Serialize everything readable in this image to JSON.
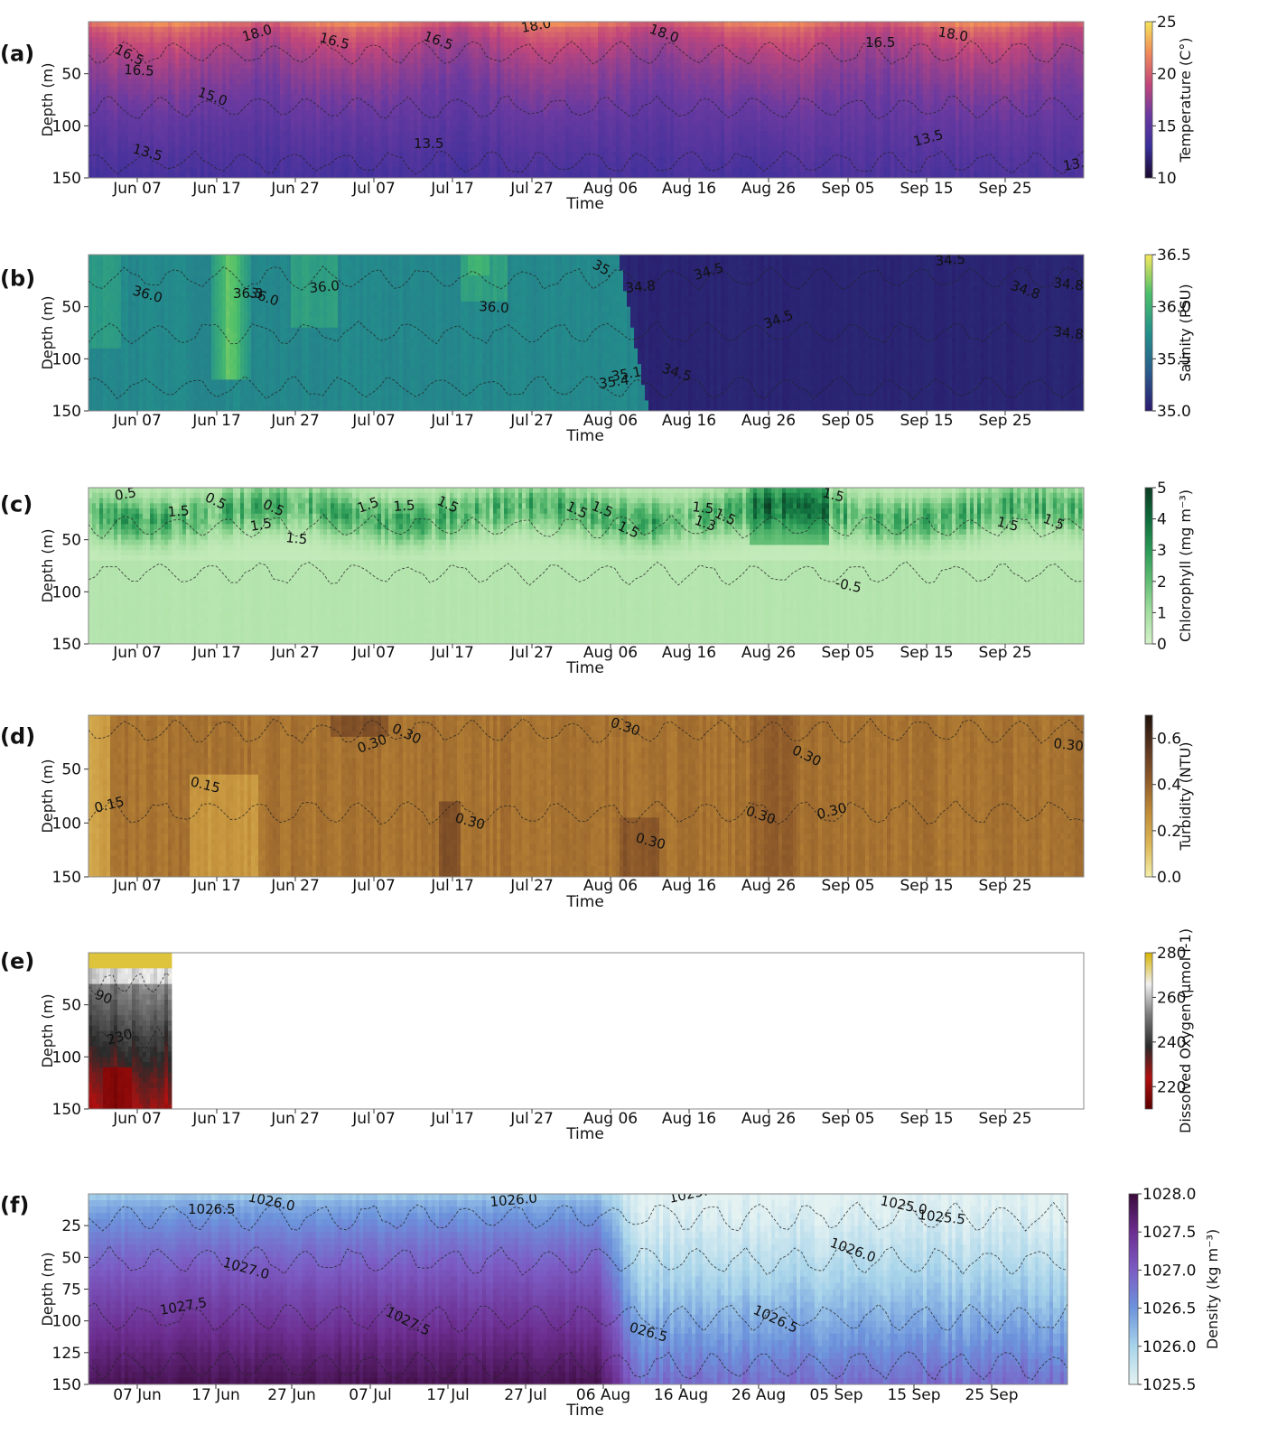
{
  "chart_data": [
    {
      "type": "heatmap",
      "panel_label": "(a)",
      "xlabel": "Time",
      "ylabel": "Depth (m)",
      "x_ticks": [
        "Jun 07",
        "Jun 17",
        "Jun 27",
        "Jul 07",
        "Jul 17",
        "Jul 27",
        "Aug 06",
        "Aug 16",
        "Aug 26",
        "Sep 05",
        "Sep 15",
        "Sep 25"
      ],
      "y_ticks": [
        50,
        100,
        150
      ],
      "ylim": [
        0,
        150
      ],
      "colorbar": {
        "label": "Temperature (C°)",
        "ticks": [
          10,
          15,
          20,
          25
        ],
        "range": [
          10,
          25
        ],
        "colors": [
          "#1a0a2e",
          "#3a2f9a",
          "#6a3aa0",
          "#c2477a",
          "#f08a5a",
          "#f6e55a"
        ]
      },
      "contours": [
        {
          "label": "16.5",
          "x": 28,
          "y": 34
        },
        {
          "label": "16.5",
          "x": 39,
          "y": 58
        },
        {
          "label": "18.0",
          "x": 172,
          "y": 22
        },
        {
          "label": "16.5",
          "x": 255,
          "y": 22
        },
        {
          "label": "16.5",
          "x": 370,
          "y": 20
        },
        {
          "label": "18.0",
          "x": 480,
          "y": 12
        },
        {
          "label": "18.0",
          "x": 620,
          "y": 12
        },
        {
          "label": "16.5",
          "x": 860,
          "y": 28
        },
        {
          "label": "18.0",
          "x": 940,
          "y": 16
        },
        {
          "label": "15.0",
          "x": 120,
          "y": 82
        },
        {
          "label": "13.5",
          "x": 48,
          "y": 145
        },
        {
          "label": "13.5",
          "x": 360,
          "y": 140
        },
        {
          "label": "13.5",
          "x": 915,
          "y": 138
        },
        {
          "label": "13.5",
          "x": 1080,
          "y": 165
        }
      ]
    },
    {
      "type": "heatmap",
      "panel_label": "(b)",
      "xlabel": "Time",
      "ylabel": "Depth (m)",
      "x_ticks": [
        "Jun 07",
        "Jun 17",
        "Jun 27",
        "Jul 07",
        "Jul 17",
        "Jul 27",
        "Aug 06",
        "Aug 16",
        "Aug 26",
        "Sep 05",
        "Sep 15",
        "Sep 25"
      ],
      "y_ticks": [
        50,
        100,
        150
      ],
      "ylim": [
        0,
        150
      ],
      "colorbar": {
        "label": "Salinity (PSU)",
        "ticks": [
          "35.0",
          "35.5",
          "36.0",
          "36.5"
        ],
        "range": [
          35.0,
          36.5
        ],
        "colors": [
          "#2a1a6e",
          "#2b5c8c",
          "#23908b",
          "#4cbf6a",
          "#f5e85c"
        ]
      },
      "contours": [
        {
          "label": "36.0",
          "x": 48,
          "y": 44
        },
        {
          "label": "36.3",
          "x": 160,
          "y": 48
        },
        {
          "label": "36.0",
          "x": 177,
          "y": 46
        },
        {
          "label": "36.0",
          "x": 245,
          "y": 42
        },
        {
          "label": "36.0",
          "x": 432,
          "y": 62
        },
        {
          "label": "35.",
          "x": 557,
          "y": 14
        },
        {
          "label": "34.8",
          "x": 595,
          "y": 42
        },
        {
          "label": "34.5",
          "x": 672,
          "y": 28
        },
        {
          "label": "34.5",
          "x": 938,
          "y": 12
        },
        {
          "label": "34.8",
          "x": 1020,
          "y": 38
        },
        {
          "label": "34.8",
          "x": 1068,
          "y": 36
        },
        {
          "label": "34.5",
          "x": 750,
          "y": 82
        },
        {
          "label": "34.5",
          "x": 634,
          "y": 130
        },
        {
          "label": "34.8",
          "x": 1068,
          "y": 90
        },
        {
          "label": "35.1",
          "x": 580,
          "y": 140
        },
        {
          "label": "35.4",
          "x": 566,
          "y": 148
        }
      ]
    },
    {
      "type": "heatmap",
      "panel_label": "(c)",
      "xlabel": "Time",
      "ylabel": "Depth (m)",
      "x_ticks": [
        "Jun 07",
        "Jun 17",
        "Jun 27",
        "Jul 07",
        "Jul 17",
        "Jul 27",
        "Aug 06",
        "Aug 16",
        "Aug 26",
        "Sep 05",
        "Sep 15",
        "Sep 25"
      ],
      "y_ticks": [
        50,
        100,
        150
      ],
      "ylim": [
        0,
        150
      ],
      "colorbar": {
        "label": "Chlorophyll (mg m⁻³)",
        "ticks": [
          0,
          1,
          2,
          3,
          4,
          5
        ],
        "range": [
          0,
          5
        ],
        "colors": [
          "#d4f1c8",
          "#a4dea0",
          "#62be74",
          "#2a9a56",
          "#0f6b3c",
          "#0c3b22"
        ]
      },
      "contours": [
        {
          "label": "0.5",
          "x": 30,
          "y": 14
        },
        {
          "label": "0.5",
          "x": 128,
          "y": 14
        },
        {
          "label": "0.5",
          "x": 192,
          "y": 22
        },
        {
          "label": "1.5",
          "x": 88,
          "y": 32
        },
        {
          "label": "1.5",
          "x": 180,
          "y": 48
        },
        {
          "label": "1.5",
          "x": 218,
          "y": 60
        },
        {
          "label": "1.5",
          "x": 300,
          "y": 28
        },
        {
          "label": "1.5",
          "x": 338,
          "y": 26
        },
        {
          "label": "1.5",
          "x": 385,
          "y": 18
        },
        {
          "label": "1.5",
          "x": 528,
          "y": 24
        },
        {
          "label": "1.5",
          "x": 556,
          "y": 24
        },
        {
          "label": "1.5",
          "x": 585,
          "y": 46
        },
        {
          "label": "1.5",
          "x": 668,
          "y": 26
        },
        {
          "label": "1.5",
          "x": 692,
          "y": 32
        },
        {
          "label": "1.5",
          "x": 812,
          "y": 10
        },
        {
          "label": "1.5",
          "x": 1005,
          "y": 42
        },
        {
          "label": "1.5",
          "x": 1056,
          "y": 38
        },
        {
          "label": "-0.5",
          "x": 826,
          "y": 110
        },
        {
          "label": "1.3",
          "x": 670,
          "y": 40
        }
      ]
    },
    {
      "type": "heatmap",
      "panel_label": "(d)",
      "xlabel": "Time",
      "ylabel": "Depth (m)",
      "x_ticks": [
        "Jun 07",
        "Jun 17",
        "Jun 27",
        "Jul 07",
        "Jul 17",
        "Jul 27",
        "Aug 06",
        "Aug 16",
        "Aug 26",
        "Sep 05",
        "Sep 15",
        "Sep 25"
      ],
      "y_ticks": [
        50,
        100,
        150
      ],
      "ylim": [
        0,
        150
      ],
      "colorbar": {
        "label": "Turbidity (NTU)",
        "ticks": [
          "0.0",
          "0.2",
          "0.4",
          "0.6"
        ],
        "range": [
          0,
          0.7
        ],
        "colors": [
          "#f4eea8",
          "#dcb657",
          "#c08c38",
          "#8e5a2a",
          "#5a3520",
          "#1f120c"
        ]
      },
      "contours": [
        {
          "label": "0.30",
          "x": 335,
          "y": 18
        },
        {
          "label": "0.30",
          "x": 300,
          "y": 42
        },
        {
          "label": "0.30",
          "x": 577,
          "y": 12
        },
        {
          "label": "0.30",
          "x": 778,
          "y": 42
        },
        {
          "label": "0.30",
          "x": 1068,
          "y": 36
        },
        {
          "label": "0.15",
          "x": 8,
          "y": 108
        },
        {
          "label": "0.15",
          "x": 112,
          "y": 78
        },
        {
          "label": "0.30",
          "x": 405,
          "y": 118
        },
        {
          "label": "0.30",
          "x": 605,
          "y": 140
        },
        {
          "label": "0.30",
          "x": 727,
          "y": 110
        },
        {
          "label": "0.30",
          "x": 808,
          "y": 115
        }
      ]
    },
    {
      "type": "heatmap",
      "panel_label": "(e)",
      "xlabel": "Time",
      "ylabel": "Depth (m)",
      "x_ticks": [
        "Jun 07",
        "Jun 17",
        "Jun 27",
        "Jul 07",
        "Jul 17",
        "Jul 27",
        "Aug 06",
        "Aug 16",
        "Aug 26",
        "Sep 05",
        "Sep 15",
        "Sep 25"
      ],
      "y_ticks": [
        50,
        100,
        150
      ],
      "ylim": [
        0,
        150
      ],
      "colorbar": {
        "label": "Dissolved Oxygen (μmol l-1)",
        "ticks": [
          220,
          240,
          260,
          280
        ],
        "range": [
          210,
          280
        ],
        "colors": [
          "#5a0000",
          "#b01010",
          "#2a2a2a",
          "#7a7a7a",
          "#f0f0f0",
          "#d8b400"
        ]
      },
      "contours": [
        {
          "label": "90",
          "x": 6,
          "y": 50
        },
        {
          "label": "230",
          "x": 22,
          "y": 102
        }
      ]
    },
    {
      "type": "heatmap",
      "panel_label": "(f)",
      "xlabel": "Time",
      "ylabel": "Depth (m)",
      "x_ticks": [
        "07 Jun",
        "17 Jun",
        "27 Jun",
        "07 Jul",
        "17 Jul",
        "27 Jul",
        "06 Aug",
        "16 Aug",
        "26 Aug",
        "05 Sep",
        "15 Sep",
        "25 Sep"
      ],
      "y_ticks": [
        25,
        50,
        75,
        100,
        125,
        150
      ],
      "ylim": [
        0,
        150
      ],
      "colorbar": {
        "label": "Density (kg m⁻³)",
        "ticks": [
          "1025.5",
          "1026.0",
          "1026.5",
          "1027.0",
          "1027.5",
          "1028.0"
        ],
        "range": [
          1025.5,
          1028.0
        ],
        "colors": [
          "#e4f2f2",
          "#a8d4ea",
          "#6c94dc",
          "#7c5cc4",
          "#6c2e90",
          "#3a0a3a"
        ]
      },
      "contours": [
        {
          "label": "1026.0",
          "x": 176,
          "y": 8
        },
        {
          "label": "1026.5",
          "x": 110,
          "y": 22
        },
        {
          "label": "1026.0",
          "x": 445,
          "y": 14
        },
        {
          "label": "1025.0",
          "x": 644,
          "y": 10
        },
        {
          "label": "1025.0",
          "x": 876,
          "y": 12
        },
        {
          "label": "1025.5",
          "x": 918,
          "y": 28
        },
        {
          "label": "1026.0",
          "x": 820,
          "y": 58
        },
        {
          "label": "1027.0",
          "x": 148,
          "y": 80
        },
        {
          "label": "1027.5",
          "x": 80,
          "y": 134
        },
        {
          "label": "1027.5",
          "x": 328,
          "y": 134
        },
        {
          "label": "1026.5",
          "x": 735,
          "y": 132
        },
        {
          "label": "026.5",
          "x": 598,
          "y": 152
        }
      ]
    }
  ]
}
